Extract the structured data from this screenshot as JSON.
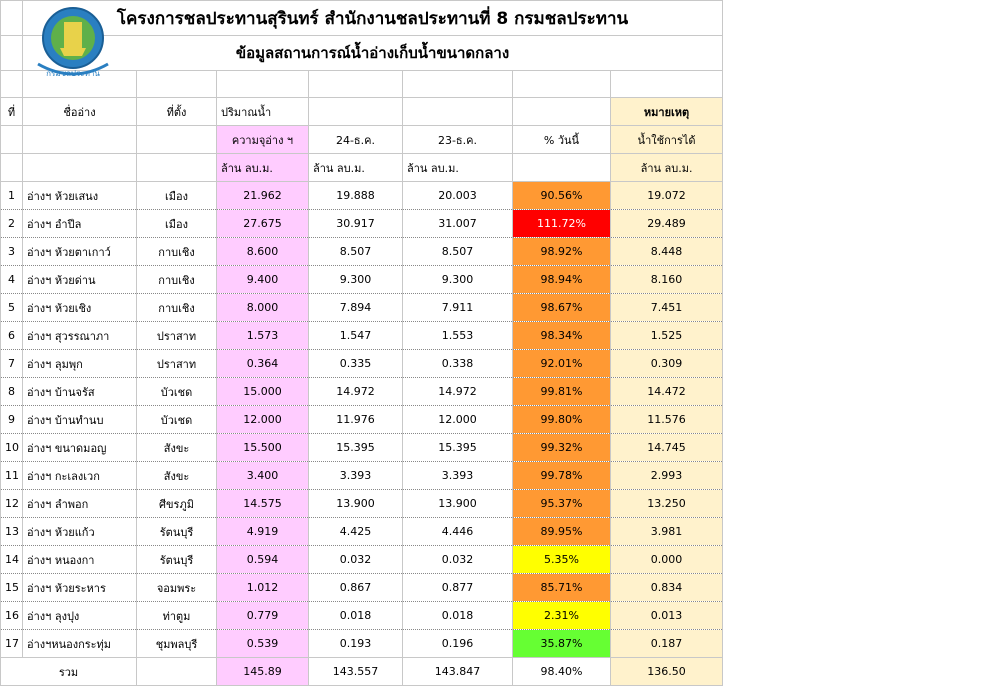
{
  "title_line1": "โครงการชลประทานสุรินทร์ สำนักงานชลประทานที่ 8 กรมชลประทาน",
  "title_line2": "ข้อมูลสถานการณ์น้ำอ่างเก็บน้ำขนาดกลาง",
  "logo_text": "กรมชลประทาน",
  "headers": {
    "no": "ที่",
    "name": "ชื่ออ่าง",
    "location": "ที่ตั้ง",
    "volume": "ปริมาณน้ำ",
    "capacity": "ความจุอ่าง ฯ",
    "date1": "24-ธ.ค.",
    "date2": "23-ธ.ค.",
    "pct": "% วันนี้",
    "remark": "หมายเหตุ",
    "usable": "น้ำใช้การได้",
    "unit": "ล้าน ลบ.ม."
  },
  "rows": [
    {
      "no": "1",
      "name": "อ่างฯ ห้วยเสนง",
      "loc": "เมือง",
      "cap": "21.962",
      "d1": "19.888",
      "d2": "20.003",
      "pct": "90.56%",
      "use": "19.072",
      "pct_color": "orange"
    },
    {
      "no": "2",
      "name": "อ่างฯ อำปีล",
      "loc": "เมือง",
      "cap": "27.675",
      "d1": "30.917",
      "d2": "31.007",
      "pct": "111.72%",
      "use": "29.489",
      "pct_color": "red"
    },
    {
      "no": "3",
      "name": "อ่างฯ ห้วยตาเกาว์",
      "loc": "กาบเชิง",
      "cap": "8.600",
      "d1": "8.507",
      "d2": "8.507",
      "pct": "98.92%",
      "use": "8.448",
      "pct_color": "orange"
    },
    {
      "no": "4",
      "name": "อ่างฯ ห้วยด่าน",
      "loc": "กาบเชิง",
      "cap": "9.400",
      "d1": "9.300",
      "d2": "9.300",
      "pct": "98.94%",
      "use": "8.160",
      "pct_color": "orange"
    },
    {
      "no": "5",
      "name": "อ่างฯ ห้วยเชิง",
      "loc": "กาบเชิง",
      "cap": "8.000",
      "d1": "7.894",
      "d2": "7.911",
      "pct": "98.67%",
      "use": "7.451",
      "pct_color": "orange"
    },
    {
      "no": "6",
      "name": "อ่างฯ สุวรรณาภา",
      "loc": "ปราสาท",
      "cap": "1.573",
      "d1": "1.547",
      "d2": "1.553",
      "pct": "98.34%",
      "use": "1.525",
      "pct_color": "orange"
    },
    {
      "no": "7",
      "name": "อ่างฯ ลุมพุก",
      "loc": "ปราสาท",
      "cap": "0.364",
      "d1": "0.335",
      "d2": "0.338",
      "pct": "92.01%",
      "use": "0.309",
      "pct_color": "orange"
    },
    {
      "no": "8",
      "name": "อ่างฯ บ้านจรัส",
      "loc": "บัวเชด",
      "cap": "15.000",
      "d1": "14.972",
      "d2": "14.972",
      "pct": "99.81%",
      "use": "14.472",
      "pct_color": "orange"
    },
    {
      "no": "9",
      "name": "อ่างฯ บ้านทำนบ",
      "loc": "บัวเชด",
      "cap": "12.000",
      "d1": "11.976",
      "d2": "12.000",
      "pct": "99.80%",
      "use": "11.576",
      "pct_color": "orange"
    },
    {
      "no": "10",
      "name": "อ่างฯ ขนาดมอญ",
      "loc": "สังขะ",
      "cap": "15.500",
      "d1": "15.395",
      "d2": "15.395",
      "pct": "99.32%",
      "use": "14.745",
      "pct_color": "orange"
    },
    {
      "no": "11",
      "name": "อ่างฯ กะเลงเวก",
      "loc": "สังขะ",
      "cap": "3.400",
      "d1": "3.393",
      "d2": "3.393",
      "pct": "99.78%",
      "use": "2.993",
      "pct_color": "orange"
    },
    {
      "no": "12",
      "name": "อ่างฯ ลำพอก",
      "loc": "ศีขรภูมิ",
      "cap": "14.575",
      "d1": "13.900",
      "d2": "13.900",
      "pct": "95.37%",
      "use": "13.250",
      "pct_color": "orange"
    },
    {
      "no": "13",
      "name": "อ่างฯ ห้วยแก้ว",
      "loc": "รัตนบุรี",
      "cap": "4.919",
      "d1": "4.425",
      "d2": "4.446",
      "pct": "89.95%",
      "use": "3.981",
      "pct_color": "orange"
    },
    {
      "no": "14",
      "name": "อ่างฯ หนองกา",
      "loc": "รัตนบุรี",
      "cap": "0.594",
      "d1": "0.032",
      "d2": "0.032",
      "pct": "5.35%",
      "use": "0.000",
      "pct_color": "yellow"
    },
    {
      "no": "15",
      "name": "อ่างฯ ห้วยระหาร",
      "loc": "จอมพระ",
      "cap": "1.012",
      "d1": "0.867",
      "d2": "0.877",
      "pct": "85.71%",
      "use": "0.834",
      "pct_color": "orange"
    },
    {
      "no": "16",
      "name": "อ่างฯ ลุงปุง",
      "loc": "ท่าตูม",
      "cap": "0.779",
      "d1": "0.018",
      "d2": "0.018",
      "pct": "2.31%",
      "use": "0.013",
      "pct_color": "yellow"
    },
    {
      "no": "17",
      "name": "อ่างฯหนองกระทุ่ม",
      "loc": "ชุมพลบุรี",
      "cap": "0.539",
      "d1": "0.193",
      "d2": "0.196",
      "pct": "35.87%",
      "use": "0.187",
      "pct_color": "green"
    }
  ],
  "total": {
    "label": "รวม",
    "cap": "145.89",
    "d1": "143.557",
    "d2": "143.847",
    "pct": "98.40%",
    "use": "136.50"
  }
}
